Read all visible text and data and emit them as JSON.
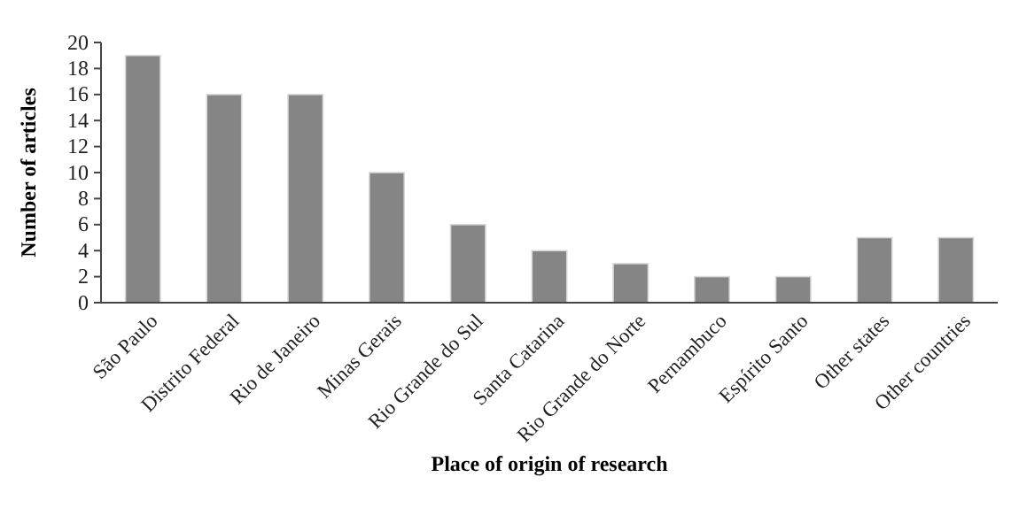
{
  "chart_data": {
    "type": "bar",
    "xlabel": "Place of origin of research",
    "ylabel": "Number of articles",
    "categories": [
      "São Paulo",
      "Distrito Federal",
      "Rio de Janeiro",
      "Minas Gerais",
      "Rio Grande do Sul",
      "Santa Catarina",
      "Rio Grande do Norte",
      "Pernambuco",
      "Espírito Santo",
      "Other states",
      "Other countries"
    ],
    "values": [
      19,
      16,
      16,
      10,
      6,
      4,
      3,
      2,
      2,
      5,
      5
    ],
    "color": "#858585",
    "ylim": [
      0,
      20
    ],
    "yticks": [
      0,
      2,
      4,
      6,
      8,
      10,
      12,
      14,
      16,
      18,
      20
    ],
    "grid": false
  }
}
